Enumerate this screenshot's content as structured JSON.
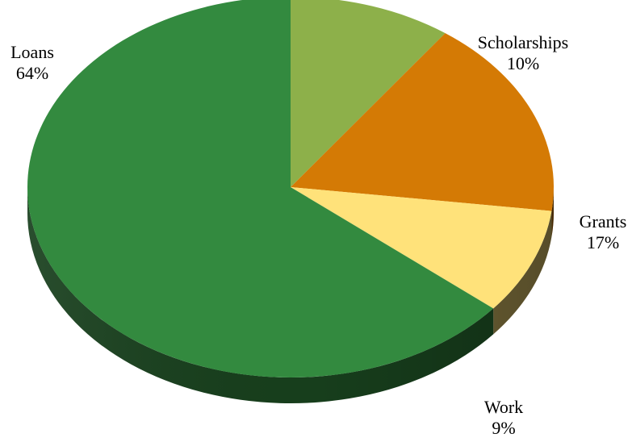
{
  "chart_data": {
    "type": "pie",
    "title": "",
    "three_d": true,
    "start": "top, clockwise",
    "slices": [
      {
        "name": "Scholarships",
        "value": 10,
        "label": "10%",
        "color": "#8db04a"
      },
      {
        "name": "Grants",
        "value": 17,
        "label": "17%",
        "color": "#d47a05"
      },
      {
        "name": "Work",
        "value": 9,
        "label": "9%",
        "color": "#ffe27a"
      },
      {
        "name": "Loans",
        "value": 64,
        "label": "64%",
        "color": "#338a3f"
      }
    ]
  }
}
